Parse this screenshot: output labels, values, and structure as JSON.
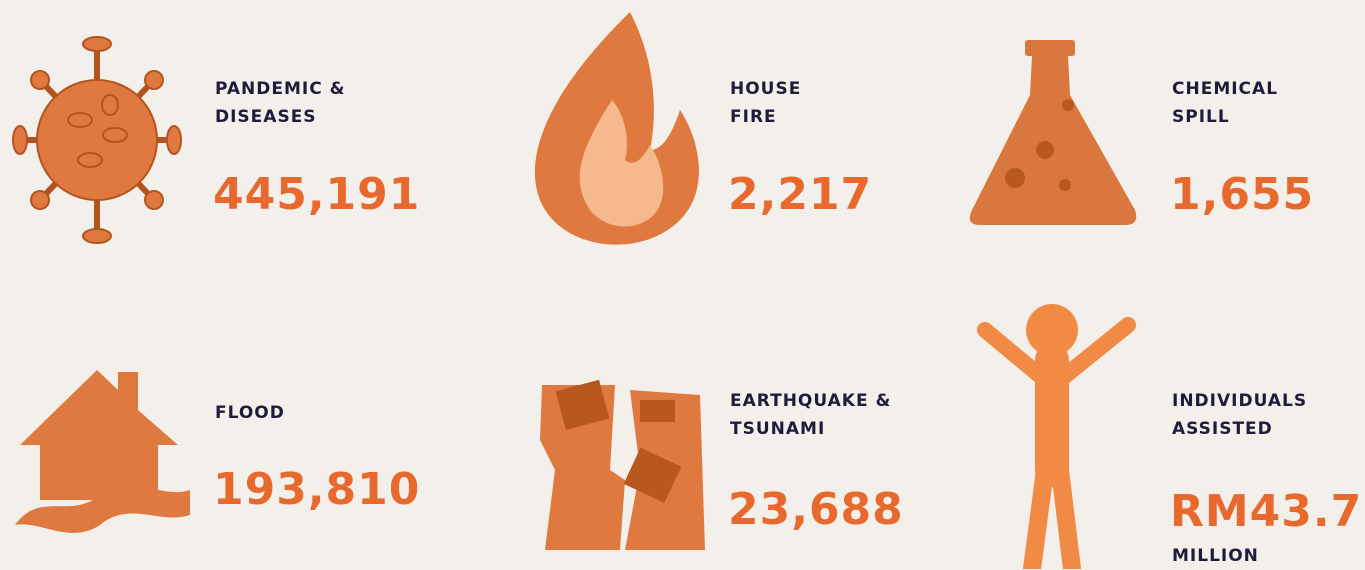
{
  "items": [
    {
      "label": [
        "PANDEMIC &",
        "DISEASES"
      ],
      "value": "445,191"
    },
    {
      "label": [
        "HOUSE",
        "FIRE"
      ],
      "value": "2,217"
    },
    {
      "label": [
        "CHEMICAL",
        "SPILL"
      ],
      "value": "1,655"
    },
    {
      "label": [
        "FLOOD"
      ],
      "value": "193,810"
    },
    {
      "label": [
        "EARTHQUAKE &",
        "TSUNAMI"
      ],
      "value": "23,688"
    },
    {
      "label": [
        "INDIVIDUALS",
        "ASSISTED"
      ],
      "value": "RM43.7",
      "note": "MILLION"
    }
  ]
}
